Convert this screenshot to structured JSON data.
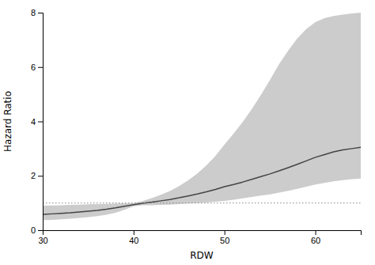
{
  "chart_data": {
    "type": "line",
    "x_label": "RDW",
    "y_label": "Hazard Ratio",
    "x": [
      30,
      31,
      32,
      33,
      34,
      35,
      36,
      37,
      38,
      39,
      40,
      41,
      42,
      43,
      44,
      45,
      46,
      47,
      48,
      49,
      50,
      51,
      52,
      53,
      54,
      55,
      56,
      57,
      58,
      59,
      60,
      61,
      62,
      63,
      64,
      65
    ],
    "series": [
      {
        "type": "area",
        "color": "#cccccc",
        "upper": [
          0.9,
          0.91,
          0.92,
          0.93,
          0.94,
          0.95,
          0.96,
          0.97,
          0.98,
          0.99,
          1.0,
          1.08,
          1.18,
          1.3,
          1.44,
          1.62,
          1.83,
          2.08,
          2.38,
          2.73,
          3.15,
          3.55,
          3.98,
          4.45,
          4.97,
          5.52,
          6.1,
          6.6,
          7.05,
          7.4,
          7.65,
          7.8,
          7.88,
          7.93,
          7.97,
          8.0
        ],
        "lower": [
          0.37,
          0.38,
          0.4,
          0.42,
          0.45,
          0.48,
          0.52,
          0.57,
          0.64,
          0.75,
          0.88,
          0.92,
          0.92,
          0.93,
          0.94,
          0.96,
          0.98,
          1.0,
          1.02,
          1.05,
          1.08,
          1.12,
          1.17,
          1.22,
          1.27,
          1.32,
          1.38,
          1.45,
          1.52,
          1.6,
          1.68,
          1.74,
          1.8,
          1.84,
          1.88,
          1.9
        ]
      },
      {
        "type": "line",
        "color": "#444444",
        "values": [
          0.58,
          0.6,
          0.62,
          0.64,
          0.67,
          0.7,
          0.73,
          0.77,
          0.82,
          0.88,
          0.94,
          0.99,
          1.03,
          1.08,
          1.13,
          1.19,
          1.26,
          1.33,
          1.41,
          1.5,
          1.6,
          1.68,
          1.77,
          1.87,
          1.97,
          2.07,
          2.18,
          2.3,
          2.42,
          2.55,
          2.68,
          2.78,
          2.88,
          2.95,
          3.0,
          3.05
        ]
      }
    ],
    "reference_lines": [
      {
        "y": 1.0,
        "color": "#888888",
        "line_style": "dotted"
      }
    ],
    "xlim": [
      30,
      65
    ],
    "ylim": [
      0,
      8
    ],
    "xticks": [
      30,
      40,
      50,
      60
    ],
    "yticks": [
      0,
      2,
      4,
      6,
      8
    ],
    "grid": false
  }
}
